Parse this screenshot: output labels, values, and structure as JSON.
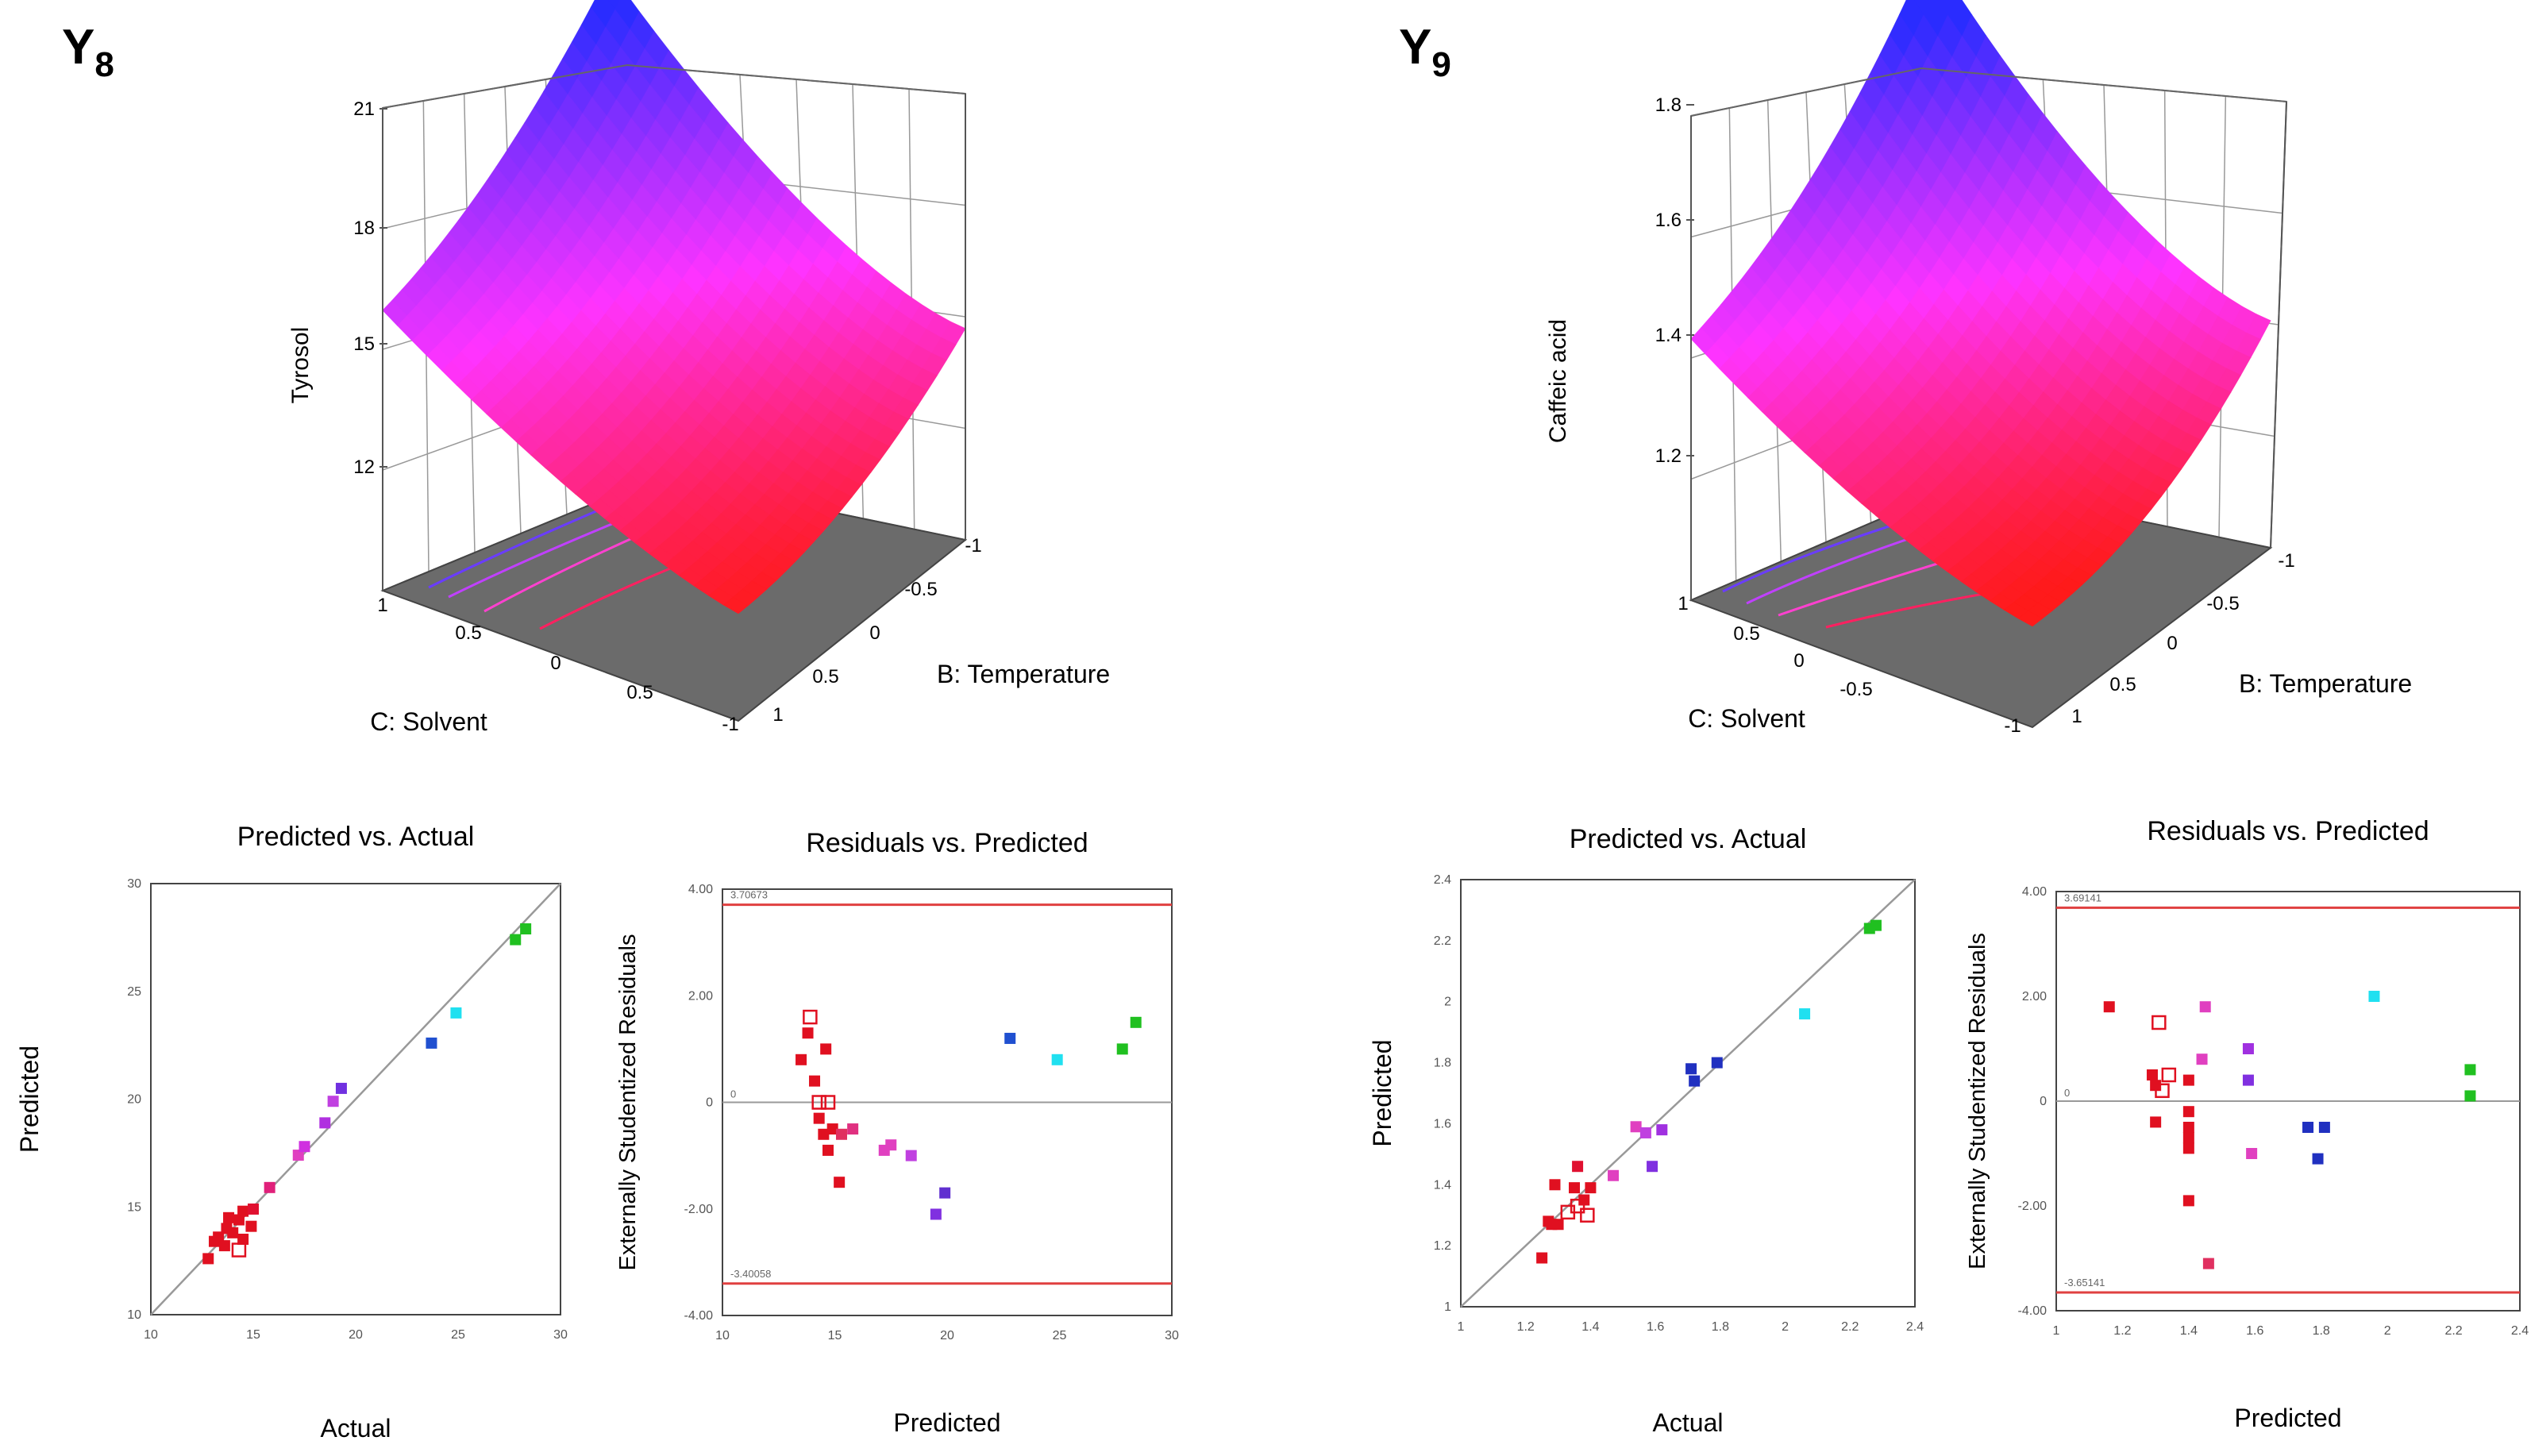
{
  "panels": [
    {
      "label": "Y",
      "label_sub": "8",
      "surface": {
        "z_label": "Tyrosol",
        "x_label": "C: Solvent",
        "y_label": "B: Temperature",
        "z_ticks": [
          "21",
          "18",
          "15",
          "12"
        ],
        "x_ticks": [
          "1",
          "0.5",
          "0",
          "0.5",
          "-1"
        ],
        "y_ticks": [
          "1",
          "0.5",
          "0",
          "-0.5",
          "-1"
        ],
        "colors": {
          "high": "#2a2cff",
          "mid": "#ff33ff",
          "low": "#ff1a1a",
          "floor": "#6b6b6b"
        }
      },
      "pva": {
        "title": "Predicted vs. Actual",
        "xlabel": "Actual",
        "ylabel": "Predicted",
        "x_ticks": [
          "10",
          "15",
          "20",
          "25",
          "30"
        ],
        "y_ticks": [
          "30",
          "25",
          "20",
          "15",
          "10"
        ]
      },
      "rvp": {
        "title": "Residuals vs. Predicted",
        "xlabel": "Predicted",
        "ylabel": "Externally Studentized Residuals",
        "x_ticks": [
          "10",
          "15",
          "20",
          "25",
          "30"
        ],
        "y_ticks": [
          "4.00",
          "2.00",
          "0",
          "-2.00",
          "-4.00"
        ],
        "upper_limit_label": "3.70673",
        "lower_limit_label": "-3.40058"
      }
    },
    {
      "label": "Y",
      "label_sub": "9",
      "surface": {
        "z_label": "Caffeic acid",
        "x_label": "C: Solvent",
        "y_label": "B: Temperature",
        "z_ticks": [
          "1.8",
          "1.6",
          "1.4",
          "1.2"
        ],
        "x_ticks": [
          "1",
          "0.5",
          "0",
          "-0.5",
          "-1"
        ],
        "y_ticks": [
          "1",
          "0.5",
          "0",
          "-0.5",
          "-1"
        ],
        "colors": {
          "high": "#2a2cff",
          "mid": "#ff33ff",
          "low": "#ff1a1a",
          "floor": "#6b6b6b"
        }
      },
      "pva": {
        "title": "Predicted vs. Actual",
        "xlabel": "Actual",
        "ylabel": "Predicted",
        "x_ticks": [
          "1",
          "1.2",
          "1.4",
          "1.6",
          "1.8",
          "2",
          "2.2",
          "2.4"
        ],
        "y_ticks": [
          "2.4",
          "2.2",
          "2",
          "1.8",
          "1.6",
          "1.4",
          "1.2",
          "1"
        ]
      },
      "rvp": {
        "title": "Residuals vs. Predicted",
        "xlabel": "Predicted",
        "ylabel": "Externally Studentized Residuals",
        "x_ticks": [
          "1",
          "1.2",
          "1.4",
          "1.6",
          "1.8",
          "2",
          "2.2",
          "2.4"
        ],
        "y_ticks": [
          "4.00",
          "2.00",
          "0",
          "-2.00",
          "-4.00"
        ],
        "upper_limit_label": "3.69141",
        "lower_limit_label": "-3.65141"
      }
    }
  ],
  "chart_data": [
    {
      "type": "scatter",
      "title": "Predicted vs. Actual",
      "xlabel": "Actual",
      "ylabel": "Predicted",
      "xlim": [
        10,
        30
      ],
      "ylim": [
        10,
        30
      ],
      "points": [
        {
          "x": 12.8,
          "y": 12.6,
          "c": "#e01020"
        },
        {
          "x": 13.1,
          "y": 13.4,
          "c": "#e01020"
        },
        {
          "x": 13.3,
          "y": 13.6,
          "c": "#e01020"
        },
        {
          "x": 13.6,
          "y": 13.2,
          "c": "#e01020"
        },
        {
          "x": 13.7,
          "y": 14.0,
          "c": "#e01020"
        },
        {
          "x": 13.8,
          "y": 14.5,
          "c": "#e01020"
        },
        {
          "x": 14.0,
          "y": 13.8,
          "c": "#e01020"
        },
        {
          "x": 14.3,
          "y": 14.4,
          "c": "#e01020"
        },
        {
          "x": 14.5,
          "y": 14.8,
          "c": "#e01020"
        },
        {
          "x": 14.5,
          "y": 13.5,
          "c": "#e01020"
        },
        {
          "x": 14.9,
          "y": 14.1,
          "c": "#e01020"
        },
        {
          "x": 15.0,
          "y": 14.9,
          "c": "#e01030"
        },
        {
          "x": 14.3,
          "y": 13.0,
          "c": "#e01020",
          "open": true
        },
        {
          "x": 15.8,
          "y": 15.9,
          "c": "#e0207a"
        },
        {
          "x": 17.2,
          "y": 17.4,
          "c": "#e040c0"
        },
        {
          "x": 17.5,
          "y": 17.8,
          "c": "#d030e0"
        },
        {
          "x": 18.5,
          "y": 18.9,
          "c": "#b030e0"
        },
        {
          "x": 18.9,
          "y": 19.9,
          "c": "#c040e0"
        },
        {
          "x": 19.3,
          "y": 20.5,
          "c": "#7030e0"
        },
        {
          "x": 23.7,
          "y": 22.6,
          "c": "#2050d0"
        },
        {
          "x": 24.9,
          "y": 24.0,
          "c": "#20e0f0"
        },
        {
          "x": 27.8,
          "y": 27.4,
          "c": "#20c020"
        },
        {
          "x": 28.3,
          "y": 27.9,
          "c": "#20c020"
        }
      ]
    },
    {
      "type": "scatter",
      "title": "Residuals vs. Predicted",
      "xlabel": "Predicted",
      "ylabel": "Externally Studentized Residuals",
      "xlim": [
        10,
        30
      ],
      "ylim": [
        -4,
        4
      ],
      "limits": [
        3.70673,
        -3.40058
      ],
      "points": [
        {
          "x": 13.5,
          "y": 0.8,
          "c": "#e01020"
        },
        {
          "x": 13.8,
          "y": 1.3,
          "c": "#e01020"
        },
        {
          "x": 14.1,
          "y": 0.4,
          "c": "#e01020"
        },
        {
          "x": 14.3,
          "y": -0.3,
          "c": "#e01020"
        },
        {
          "x": 14.5,
          "y": -0.6,
          "c": "#e01020"
        },
        {
          "x": 14.6,
          "y": 1.0,
          "c": "#e01020"
        },
        {
          "x": 14.7,
          "y": -0.9,
          "c": "#e01020"
        },
        {
          "x": 14.9,
          "y": -0.5,
          "c": "#e01020"
        },
        {
          "x": 15.2,
          "y": -1.5,
          "c": "#e01020"
        },
        {
          "x": 15.3,
          "y": -0.6,
          "c": "#e03060"
        },
        {
          "x": 15.8,
          "y": -0.5,
          "c": "#e03080"
        },
        {
          "x": 13.9,
          "y": 1.6,
          "c": "#e01020",
          "open": true
        },
        {
          "x": 14.3,
          "y": 0.0,
          "c": "#e01020",
          "open": true
        },
        {
          "x": 14.7,
          "y": 0.0,
          "c": "#e01020",
          "open": true
        },
        {
          "x": 17.2,
          "y": -0.9,
          "c": "#e040c0"
        },
        {
          "x": 17.5,
          "y": -0.8,
          "c": "#e040c0"
        },
        {
          "x": 18.4,
          "y": -1.0,
          "c": "#c040e0"
        },
        {
          "x": 19.5,
          "y": -2.1,
          "c": "#8030e0"
        },
        {
          "x": 19.9,
          "y": -1.7,
          "c": "#6030d0"
        },
        {
          "x": 22.8,
          "y": 1.2,
          "c": "#2050d0"
        },
        {
          "x": 24.9,
          "y": 0.8,
          "c": "#20e0f0"
        },
        {
          "x": 27.8,
          "y": 1.0,
          "c": "#20c020"
        },
        {
          "x": 28.4,
          "y": 1.5,
          "c": "#20c020"
        }
      ]
    },
    {
      "type": "scatter",
      "title": "Predicted vs. Actual",
      "xlabel": "Actual",
      "ylabel": "Predicted",
      "xlim": [
        1,
        2.4
      ],
      "ylim": [
        1,
        2.4
      ],
      "points": [
        {
          "x": 1.25,
          "y": 1.16,
          "c": "#e01020"
        },
        {
          "x": 1.27,
          "y": 1.28,
          "c": "#e01020"
        },
        {
          "x": 1.28,
          "y": 1.27,
          "c": "#e01020"
        },
        {
          "x": 1.29,
          "y": 1.4,
          "c": "#e01020"
        },
        {
          "x": 1.3,
          "y": 1.27,
          "c": "#e01020"
        },
        {
          "x": 1.35,
          "y": 1.39,
          "c": "#e01020"
        },
        {
          "x": 1.36,
          "y": 1.46,
          "c": "#e01030"
        },
        {
          "x": 1.38,
          "y": 1.35,
          "c": "#e01020"
        },
        {
          "x": 1.4,
          "y": 1.39,
          "c": "#e01020"
        },
        {
          "x": 1.33,
          "y": 1.31,
          "c": "#e01020",
          "open": true
        },
        {
          "x": 1.36,
          "y": 1.33,
          "c": "#e01020",
          "open": true
        },
        {
          "x": 1.39,
          "y": 1.3,
          "c": "#e01020",
          "open": true
        },
        {
          "x": 1.47,
          "y": 1.43,
          "c": "#e040c0"
        },
        {
          "x": 1.54,
          "y": 1.59,
          "c": "#e040c0"
        },
        {
          "x": 1.57,
          "y": 1.57,
          "c": "#c040e0"
        },
        {
          "x": 1.59,
          "y": 1.46,
          "c": "#8030e0"
        },
        {
          "x": 1.62,
          "y": 1.58,
          "c": "#a030e0"
        },
        {
          "x": 1.71,
          "y": 1.78,
          "c": "#2030c0"
        },
        {
          "x": 1.72,
          "y": 1.74,
          "c": "#2030c0"
        },
        {
          "x": 1.79,
          "y": 1.8,
          "c": "#2030c0"
        },
        {
          "x": 2.06,
          "y": 1.96,
          "c": "#20e0f0"
        },
        {
          "x": 2.26,
          "y": 2.24,
          "c": "#20c020"
        },
        {
          "x": 2.28,
          "y": 2.25,
          "c": "#20c020"
        }
      ]
    },
    {
      "type": "scatter",
      "title": "Residuals vs. Predicted",
      "xlabel": "Predicted",
      "ylabel": "Externally Studentized Residuals",
      "xlim": [
        1,
        2.4
      ],
      "ylim": [
        -4,
        4
      ],
      "limits": [
        3.69141,
        -3.65141
      ],
      "points": [
        {
          "x": 1.16,
          "y": 1.8,
          "c": "#e01020"
        },
        {
          "x": 1.29,
          "y": 0.5,
          "c": "#e01020"
        },
        {
          "x": 1.3,
          "y": 0.3,
          "c": "#e01020"
        },
        {
          "x": 1.3,
          "y": -0.4,
          "c": "#e01020"
        },
        {
          "x": 1.4,
          "y": 0.4,
          "c": "#e01020"
        },
        {
          "x": 1.4,
          "y": -0.2,
          "c": "#e01020"
        },
        {
          "x": 1.4,
          "y": -0.5,
          "c": "#e01020"
        },
        {
          "x": 1.4,
          "y": -0.7,
          "c": "#e01020"
        },
        {
          "x": 1.4,
          "y": -0.9,
          "c": "#e01020"
        },
        {
          "x": 1.4,
          "y": -1.9,
          "c": "#e01020"
        },
        {
          "x": 1.46,
          "y": -3.1,
          "c": "#e03060"
        },
        {
          "x": 1.31,
          "y": 1.5,
          "c": "#e01020",
          "open": true
        },
        {
          "x": 1.32,
          "y": 0.2,
          "c": "#e01020",
          "open": true
        },
        {
          "x": 1.34,
          "y": 0.5,
          "c": "#e01020",
          "open": true
        },
        {
          "x": 1.44,
          "y": 0.8,
          "c": "#e040c0"
        },
        {
          "x": 1.45,
          "y": 1.8,
          "c": "#e040c0"
        },
        {
          "x": 1.59,
          "y": -1.0,
          "c": "#e040c0"
        },
        {
          "x": 1.58,
          "y": 1.0,
          "c": "#a030e0"
        },
        {
          "x": 1.58,
          "y": 0.4,
          "c": "#8030e0"
        },
        {
          "x": 1.76,
          "y": -0.5,
          "c": "#2030c0"
        },
        {
          "x": 1.79,
          "y": -1.1,
          "c": "#2030c0"
        },
        {
          "x": 1.81,
          "y": -0.5,
          "c": "#2030c0"
        },
        {
          "x": 1.96,
          "y": 2.0,
          "c": "#20e0f0"
        },
        {
          "x": 2.25,
          "y": 0.6,
          "c": "#20c020"
        },
        {
          "x": 2.25,
          "y": 0.1,
          "c": "#20c020"
        }
      ]
    }
  ]
}
